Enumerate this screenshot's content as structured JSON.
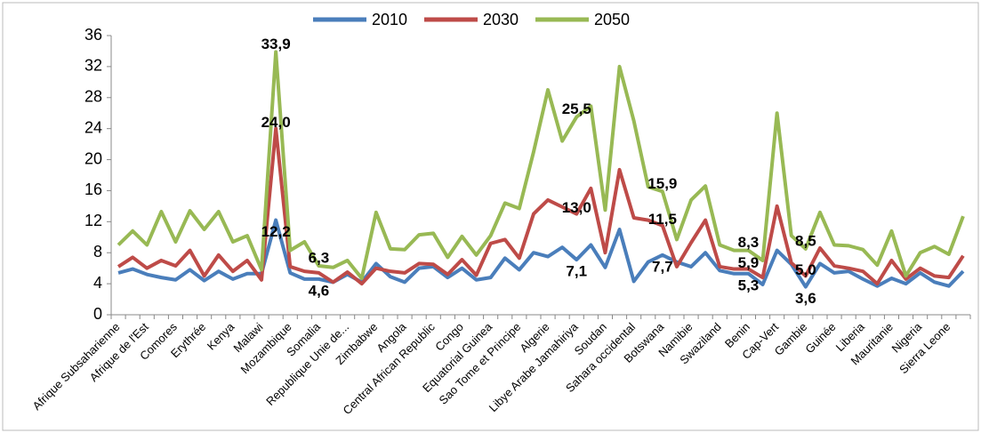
{
  "chart_data": {
    "type": "line",
    "categories": [
      "Afrique Subsaharienne",
      null,
      "Afrique de l'Est",
      null,
      "Comores",
      null,
      "Erythrée",
      null,
      "Kenya",
      null,
      "Malawi",
      null,
      "Mozambique",
      null,
      "Somalia",
      null,
      "Republique Unie de...",
      null,
      "Zimbabwe",
      null,
      "Angola",
      null,
      "Central African Republic",
      null,
      "Congo",
      null,
      "Equatorial Guinea",
      null,
      "Sao Tome et Principe",
      null,
      "Algerie",
      null,
      "Libye Arabe Jamahiriya",
      null,
      "Soudan",
      null,
      "Sahara occidental",
      null,
      "Botswana",
      null,
      "Namibie",
      null,
      "Swaziland",
      null,
      "Benin",
      null,
      "Cap-Vert",
      null,
      "Gambie",
      null,
      "Guinée",
      null,
      "Liberia",
      null,
      "Mauritanie",
      null,
      "Nigeria",
      null,
      "Sierra Leone",
      null
    ],
    "series": [
      {
        "name": "2010",
        "color": "#4a7ebb",
        "values": [
          5.4,
          5.9,
          5.2,
          4.8,
          4.5,
          5.8,
          4.4,
          5.6,
          4.6,
          5.3,
          5.3,
          12.2,
          5.4,
          4.6,
          4.6,
          4.2,
          5.2,
          4.2,
          6.6,
          4.9,
          4.2,
          6.0,
          6.2,
          4.8,
          6.0,
          4.5,
          4.8,
          7.3,
          5.8,
          8.0,
          7.5,
          8.7,
          7.1,
          9.0,
          6.1,
          11.0,
          4.3,
          6.8,
          7.7,
          6.8,
          6.2,
          8.0,
          5.7,
          5.3,
          5.3,
          3.9,
          8.3,
          6.5,
          3.6,
          6.6,
          5.4,
          5.6,
          4.6,
          3.7,
          4.7,
          4.0,
          5.4,
          4.2,
          3.7,
          5.6
        ],
        "value_labels": [
          null,
          null,
          null,
          null,
          null,
          null,
          null,
          null,
          null,
          null,
          null,
          "12,2",
          null,
          null,
          "4,6",
          null,
          null,
          null,
          null,
          null,
          null,
          null,
          null,
          null,
          null,
          null,
          null,
          null,
          null,
          null,
          null,
          null,
          "7,1",
          null,
          null,
          null,
          null,
          null,
          "7,7",
          null,
          null,
          null,
          null,
          null,
          "5,3",
          null,
          null,
          null,
          "3,6",
          null,
          null,
          null,
          null,
          null,
          null,
          null,
          null,
          null,
          null,
          null
        ]
      },
      {
        "name": "2030",
        "color": "#be4b48",
        "values": [
          6.2,
          7.4,
          6.0,
          7.0,
          6.3,
          8.3,
          5.0,
          7.7,
          5.6,
          7.0,
          4.5,
          24.0,
          6.2,
          5.6,
          5.4,
          4.2,
          5.5,
          4.0,
          6.0,
          5.6,
          5.4,
          6.6,
          6.5,
          5.2,
          7.1,
          5.1,
          9.2,
          9.7,
          7.3,
          13.0,
          14.8,
          13.9,
          13.0,
          16.3,
          8.0,
          18.7,
          12.5,
          12.2,
          11.5,
          6.2,
          9.3,
          12.2,
          6.2,
          5.9,
          5.9,
          4.8,
          14.0,
          6.7,
          5.0,
          8.6,
          6.3,
          6.0,
          5.6,
          4.0,
          7.0,
          4.6,
          6.0,
          5.0,
          4.8,
          7.6
        ],
        "value_labels": [
          null,
          null,
          null,
          null,
          null,
          null,
          null,
          null,
          null,
          null,
          null,
          "24,0",
          null,
          null,
          null,
          null,
          null,
          null,
          null,
          null,
          null,
          null,
          null,
          null,
          null,
          null,
          null,
          null,
          null,
          null,
          null,
          null,
          "13,0",
          null,
          null,
          null,
          null,
          null,
          "11,5",
          null,
          null,
          null,
          null,
          null,
          "5,9",
          null,
          null,
          null,
          "5,0",
          null,
          null,
          null,
          null,
          null,
          null,
          null,
          null,
          null,
          null,
          null
        ]
      },
      {
        "name": "2050",
        "color": "#98b954",
        "values": [
          9.0,
          10.8,
          9.0,
          13.3,
          9.4,
          13.4,
          11.0,
          13.3,
          9.4,
          10.2,
          5.8,
          33.9,
          8.3,
          9.4,
          6.3,
          6.1,
          7.0,
          4.7,
          13.2,
          8.5,
          8.4,
          10.3,
          10.5,
          7.4,
          10.1,
          7.7,
          10.2,
          14.4,
          13.7,
          21.0,
          29.0,
          22.4,
          25.5,
          26.9,
          13.5,
          32.0,
          25.0,
          16.5,
          15.9,
          9.7,
          14.8,
          16.6,
          9.0,
          8.3,
          8.3,
          7.0,
          26.0,
          10.2,
          8.5,
          13.2,
          9.0,
          8.9,
          8.4,
          6.4,
          10.8,
          5.0,
          8.0,
          8.8,
          7.8,
          12.7
        ],
        "value_labels": [
          null,
          null,
          null,
          null,
          null,
          null,
          null,
          null,
          null,
          null,
          null,
          "33,9",
          null,
          null,
          "6,3",
          null,
          null,
          null,
          null,
          null,
          null,
          null,
          null,
          null,
          null,
          null,
          null,
          null,
          null,
          null,
          null,
          null,
          "25,5",
          null,
          null,
          null,
          null,
          null,
          "15,9",
          null,
          null,
          null,
          null,
          null,
          "8,3",
          null,
          null,
          null,
          "8,5",
          null,
          null,
          null,
          null,
          null,
          null,
          null,
          null,
          null,
          null,
          null
        ]
      }
    ],
    "ylim": [
      0,
      36
    ],
    "yticks": [
      0,
      4,
      8,
      12,
      16,
      20,
      24,
      28,
      32,
      36
    ],
    "grid": false,
    "legend": "top"
  }
}
